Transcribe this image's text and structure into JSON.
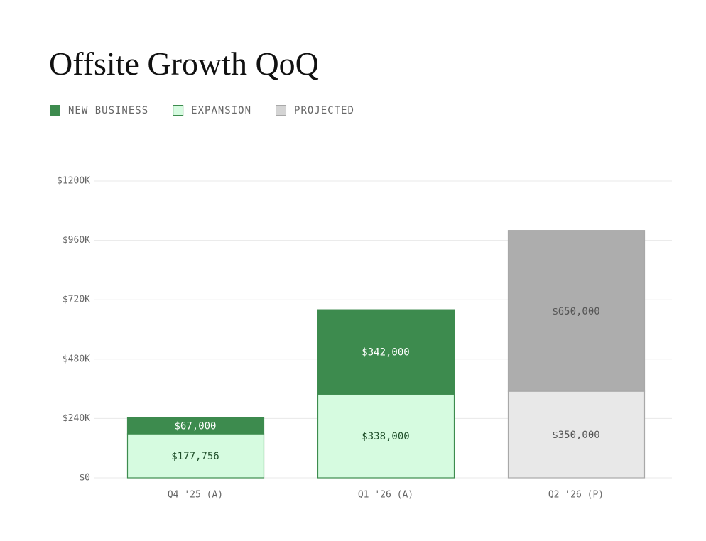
{
  "chart_data": {
    "type": "stacked_bar",
    "title": "Offsite Growth QoQ",
    "categories": [
      "Q4 '25 (A)",
      "Q1 '26 (A)",
      "Q2 '26 (P)"
    ],
    "projected_categories": [
      false,
      false,
      true
    ],
    "series": [
      {
        "name": "EXPANSION",
        "color": "#d6fbe0",
        "stroke": "#3d8b4e",
        "label_color": "#1f4f2a",
        "projected_color": "#e8e8e8",
        "values": [
          177756,
          338000,
          350000
        ],
        "value_labels": [
          "$177,756",
          "$338,000",
          "$350,000"
        ]
      },
      {
        "name": "NEW BUSINESS",
        "color": "#3d8b4e",
        "stroke": "#3d8b4e",
        "label_color": "#ffffff",
        "projected_color": "#adadad",
        "values": [
          67000,
          342000,
          650000
        ],
        "value_labels": [
          "$67,000",
          "$342,000",
          "$650,000"
        ]
      }
    ],
    "projected_legend": {
      "name": "PROJECTED",
      "color": "#d4d4d4",
      "stroke": "#a8a8a8",
      "label_color": "#555555"
    },
    "legend_order": [
      1,
      0
    ],
    "ylim": [
      0,
      1200000
    ],
    "yticks": [
      {
        "value": 0,
        "label": "$0"
      },
      {
        "value": 240000,
        "label": "$240K"
      },
      {
        "value": 480000,
        "label": "$480K"
      },
      {
        "value": 720000,
        "label": "$720K"
      },
      {
        "value": 960000,
        "label": "$960K"
      },
      {
        "value": 1200000,
        "label": "$1200K"
      }
    ],
    "grid": true
  }
}
